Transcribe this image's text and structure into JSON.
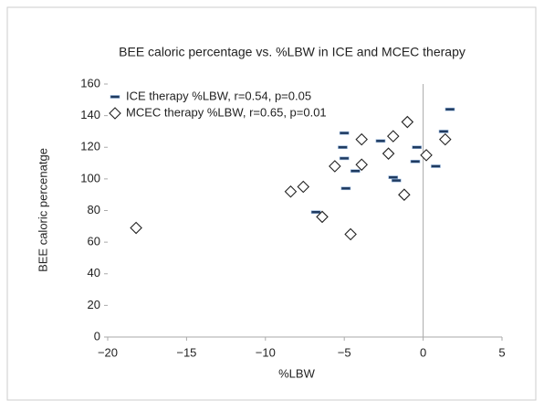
{
  "chart_data": {
    "type": "scatter",
    "title": "BEE caloric percentage vs. %LBW in ICE and MCEC therapy",
    "x_label": "%LBW",
    "y_label": "BEE caloric percenatge",
    "xlim": [
      -20,
      5
    ],
    "xticks": [
      {
        "value": -20,
        "label": "−20"
      },
      {
        "value": -15,
        "label": "−15"
      },
      {
        "value": -10,
        "label": "−10"
      },
      {
        "value": -5,
        "label": "−5"
      },
      0,
      5
    ],
    "ylim": [
      0,
      160
    ],
    "yticks": [
      0,
      20,
      40,
      60,
      80,
      100,
      120,
      140,
      160
    ],
    "legend": "top-left",
    "series": [
      {
        "name": "ICE therapy %LBW, r=0.54, p=0.05",
        "color": "#1f3a5f",
        "marker": "dash",
        "x": [
          1.7,
          1.3,
          0.8,
          -0.4,
          -0.5,
          -1.9,
          -1.7,
          -2.7,
          -5,
          -5.1,
          -5,
          -4.3,
          -4.9,
          -6.8
        ],
        "values": [
          144,
          130,
          108,
          120,
          111,
          101,
          99,
          124,
          129,
          120,
          113,
          105,
          94,
          79
        ]
      },
      {
        "name": "MCEC therapy %LBW, r=0.65, p=0.01",
        "color": "#222222",
        "marker": "diamond",
        "x": [
          -18.2,
          -8.4,
          -7.6,
          -6.4,
          -5.6,
          -4.6,
          -3.9,
          -3.9,
          -2.2,
          -1.9,
          -1.2,
          -1,
          0.2,
          1.4
        ],
        "values": [
          69,
          92,
          95,
          76,
          108,
          65,
          109,
          125,
          116,
          127,
          90,
          136,
          115,
          125
        ]
      }
    ]
  }
}
